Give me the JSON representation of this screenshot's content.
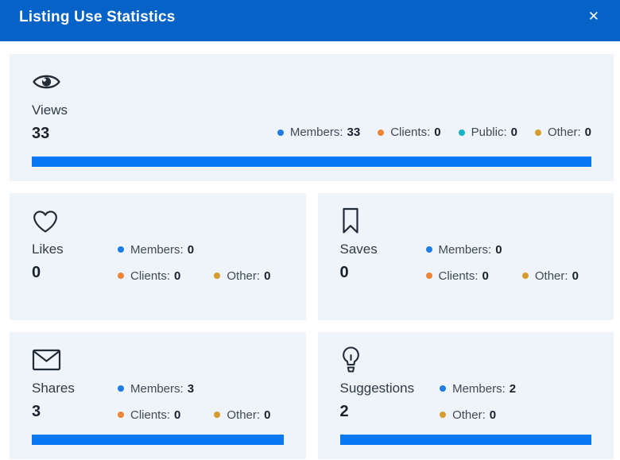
{
  "header": {
    "title": "Listing Use Statistics",
    "close_icon": "✕"
  },
  "colors": {
    "header_bg": "#0562C6",
    "card_bg": "#EFF4FB",
    "bar_fill": "#0779F2",
    "icon_stroke": "#222B38",
    "members": "#1E7CE2",
    "clients": "#EE8435",
    "public": "#16B2C5",
    "other": "#D79C2E"
  },
  "cards": {
    "views": {
      "title": "Views",
      "count": "33",
      "icon": "eye-icon",
      "legend": [
        {
          "key": "members",
          "label": "Members:",
          "value": "33"
        },
        {
          "key": "clients",
          "label": "Clients:",
          "value": "0"
        },
        {
          "key": "public",
          "label": "Public:",
          "value": "0"
        },
        {
          "key": "other",
          "label": "Other:",
          "value": "0"
        }
      ],
      "bar_percent": 100
    },
    "likes": {
      "title": "Likes",
      "count": "0",
      "icon": "heart-icon",
      "legend": [
        {
          "key": "members",
          "label": "Members:",
          "value": "0"
        },
        {
          "key": "clients",
          "label": "Clients:",
          "value": "0"
        },
        {
          "key": "other",
          "label": "Other:",
          "value": "0"
        }
      ],
      "bar_percent": 0
    },
    "saves": {
      "title": "Saves",
      "count": "0",
      "icon": "bookmark-icon",
      "legend": [
        {
          "key": "members",
          "label": "Members:",
          "value": "0"
        },
        {
          "key": "clients",
          "label": "Clients:",
          "value": "0"
        },
        {
          "key": "other",
          "label": "Other:",
          "value": "0"
        }
      ],
      "bar_percent": 0
    },
    "shares": {
      "title": "Shares",
      "count": "3",
      "icon": "envelope-icon",
      "legend": [
        {
          "key": "members",
          "label": "Members:",
          "value": "3"
        },
        {
          "key": "clients",
          "label": "Clients:",
          "value": "0"
        },
        {
          "key": "other",
          "label": "Other:",
          "value": "0"
        }
      ],
      "bar_percent": 100
    },
    "suggestions": {
      "title": "Suggestions",
      "count": "2",
      "icon": "bulb-icon",
      "legend": [
        {
          "key": "members",
          "label": "Members:",
          "value": "2"
        },
        {
          "key": "other",
          "label": "Other:",
          "value": "0"
        }
      ],
      "bar_percent": 100
    }
  }
}
